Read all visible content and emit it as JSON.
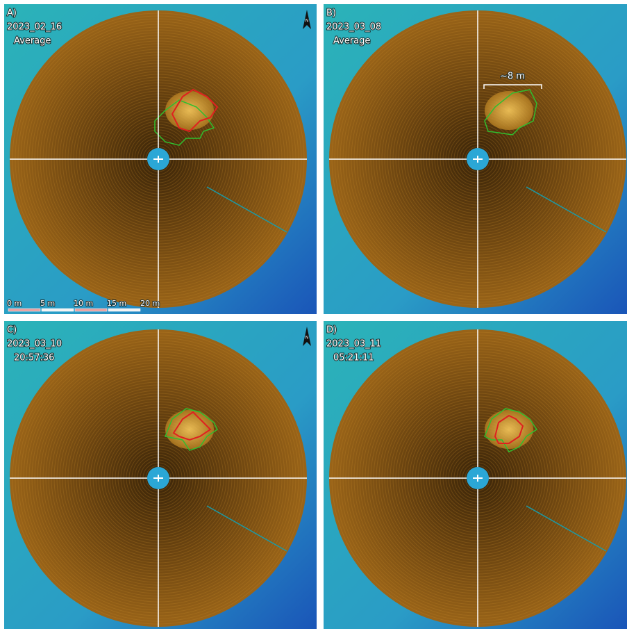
{
  "panels": [
    {
      "label": "A)",
      "date": "2023_02_16",
      "subtitle": "Average"
    },
    {
      "label": "B)",
      "date": "2023_03_08",
      "subtitle": "Average"
    },
    {
      "label": "C)",
      "date": "2023_03_10",
      "subtitle": "20:57:36"
    },
    {
      "label": "D)",
      "date": "2023_03_11",
      "subtitle": "05:21:11"
    }
  ],
  "scale_bar": {
    "labels": [
      "0 m",
      "5 m",
      "10 m",
      "15 m",
      "20 m"
    ]
  },
  "annotation": "~8 m",
  "north_label": "N"
}
